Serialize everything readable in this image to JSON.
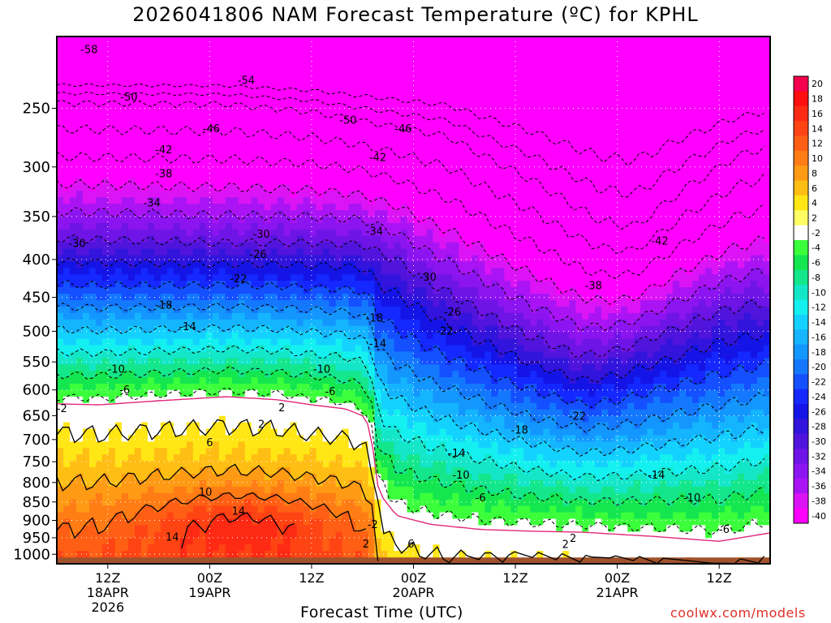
{
  "chart_data": {
    "type": "heatmap",
    "title": "2026041806 NAM Forecast Temperature (ºC) for KPHL",
    "xlabel": "Forecast Time (UTC)",
    "ylabel": "",
    "credit": "coolwx.com/models",
    "x_range_hours_from_init": [
      0,
      84
    ],
    "x_ticks": [
      {
        "hour": 6,
        "lines": [
          "12Z",
          "18APR",
          "2026"
        ]
      },
      {
        "hour": 18,
        "lines": [
          "00Z",
          "19APR"
        ]
      },
      {
        "hour": 30,
        "lines": [
          "12Z"
        ]
      },
      {
        "hour": 42,
        "lines": [
          "00Z",
          "20APR"
        ]
      },
      {
        "hour": 54,
        "lines": [
          "12Z"
        ]
      },
      {
        "hour": 66,
        "lines": [
          "00Z",
          "21APR"
        ]
      },
      {
        "hour": 78,
        "lines": [
          "12Z"
        ]
      }
    ],
    "y_axis": {
      "scale": "log",
      "reversed": true,
      "range": [
        1030,
        200
      ],
      "ticks": [
        250,
        300,
        350,
        400,
        450,
        500,
        550,
        600,
        650,
        700,
        750,
        800,
        850,
        900,
        950,
        1000
      ]
    },
    "grid": true,
    "colorbar": {
      "placement": "right",
      "labels": [
        "20",
        "18",
        "16",
        "14",
        "12",
        "10",
        "8",
        "6",
        "4",
        "2",
        "-2",
        "-4",
        "-6",
        "-8",
        "-10",
        "-12",
        "-14",
        "-16",
        "-18",
        "-20",
        "-22",
        "-24",
        "-26",
        "-28",
        "-30",
        "-32",
        "-34",
        "-36",
        "-38",
        "-40"
      ],
      "colors": [
        "#f5004e",
        "#ff0f0f",
        "#ff2a14",
        "#ff4414",
        "#ff5f14",
        "#ff7d14",
        "#ff9a14",
        "#ffbe14",
        "#ffe614",
        "#ffff64",
        "#ffffff",
        "#3cff3c",
        "#14e650",
        "#14e68c",
        "#14e6c8",
        "#14f0f0",
        "#14d2ff",
        "#14b4ff",
        "#1496ff",
        "#1478ff",
        "#1450ff",
        "#1428ff",
        "#1414e6",
        "#3214dc",
        "#5014dc",
        "#6e14e6",
        "#8c14f0",
        "#aa14f5",
        "#dc14f5",
        "#ff00ff"
      ]
    },
    "contour_labels": [
      {
        "text": "-58",
        "x": 3.8,
        "p": 208
      },
      {
        "text": "-54",
        "x": 22.3,
        "p": 229
      },
      {
        "text": "-50",
        "x": 8.5,
        "p": 241
      },
      {
        "text": "-50",
        "x": 34.3,
        "p": 259
      },
      {
        "text": "-46",
        "x": 18.2,
        "p": 266
      },
      {
        "text": "-46",
        "x": 40.8,
        "p": 266
      },
      {
        "text": "-42",
        "x": 12.6,
        "p": 284
      },
      {
        "text": "-42",
        "x": 37.8,
        "p": 291
      },
      {
        "text": "-42",
        "x": 71.0,
        "p": 377
      },
      {
        "text": "-38",
        "x": 12.6,
        "p": 306
      },
      {
        "text": "-38",
        "x": 63.2,
        "p": 433
      },
      {
        "text": "-34",
        "x": 11.2,
        "p": 335
      },
      {
        "text": "-34",
        "x": 37.4,
        "p": 366
      },
      {
        "text": "-30",
        "x": 2.4,
        "p": 380
      },
      {
        "text": "-30",
        "x": 24.1,
        "p": 369
      },
      {
        "text": "-30",
        "x": 43.7,
        "p": 422
      },
      {
        "text": "-26",
        "x": 23.7,
        "p": 393
      },
      {
        "text": "-26",
        "x": 46.6,
        "p": 470
      },
      {
        "text": "-22",
        "x": 21.4,
        "p": 424
      },
      {
        "text": "-22",
        "x": 45.7,
        "p": 499
      },
      {
        "text": "-22",
        "x": 61.3,
        "p": 650
      },
      {
        "text": "-18",
        "x": 12.6,
        "p": 460
      },
      {
        "text": "-18",
        "x": 37.4,
        "p": 479
      },
      {
        "text": "-18",
        "x": 54.5,
        "p": 679
      },
      {
        "text": "-14",
        "x": 15.4,
        "p": 492
      },
      {
        "text": "-14",
        "x": 37.8,
        "p": 519
      },
      {
        "text": "-14",
        "x": 47.1,
        "p": 729
      },
      {
        "text": "-14",
        "x": 70.6,
        "p": 781
      },
      {
        "text": "-10",
        "x": 7.0,
        "p": 562
      },
      {
        "text": "-10",
        "x": 31.2,
        "p": 562
      },
      {
        "text": "-10",
        "x": 47.6,
        "p": 781
      },
      {
        "text": "-10",
        "x": 74.8,
        "p": 838
      },
      {
        "text": "-6",
        "x": 8.0,
        "p": 599
      },
      {
        "text": "-6",
        "x": 32.2,
        "p": 602
      },
      {
        "text": "-6",
        "x": 49.9,
        "p": 838
      },
      {
        "text": "-6",
        "x": 78.6,
        "p": 924
      },
      {
        "text": "-2",
        "x": 0.6,
        "p": 635
      },
      {
        "text": "-2",
        "x": 37.2,
        "p": 910
      },
      {
        "text": "2",
        "x": 26.5,
        "p": 633
      },
      {
        "text": "2",
        "x": 24.1,
        "p": 667
      },
      {
        "text": "2",
        "x": 36.4,
        "p": 967
      },
      {
        "text": "2",
        "x": 59.9,
        "p": 968
      },
      {
        "text": "2",
        "x": 60.8,
        "p": 950
      },
      {
        "text": "6",
        "x": 18.0,
        "p": 706
      },
      {
        "text": "6",
        "x": 41.7,
        "p": 967
      },
      {
        "text": "10",
        "x": 17.5,
        "p": 823
      },
      {
        "text": "14",
        "x": 21.4,
        "p": 873
      },
      {
        "text": "14",
        "x": 13.6,
        "p": 946
      }
    ]
  }
}
